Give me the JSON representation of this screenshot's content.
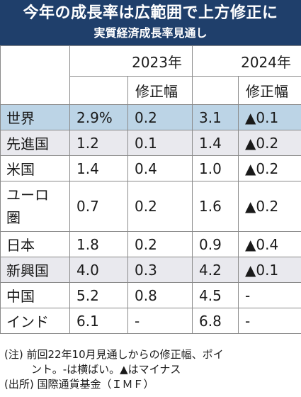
{
  "header": {
    "title": "今年の成長率は広範囲で上方修正に",
    "subtitle": "実質経済成長率見通し"
  },
  "table": {
    "year_2023": "2023年",
    "year_2024": "2024年",
    "revision_label_2023": "修正幅",
    "revision_label_2024": "修正幅",
    "rows": [
      {
        "name": "世界",
        "v2023": "2.9%",
        "r2023": "0.2",
        "v2024": "3.1",
        "r2024": "▲0.1"
      },
      {
        "name": "先進国",
        "v2023": "1.2",
        "r2023": "0.1",
        "v2024": "1.4",
        "r2024": "▲0.2"
      },
      {
        "name": "米国",
        "v2023": "1.4",
        "r2023": "0.4",
        "v2024": "1.0",
        "r2024": "▲0.2"
      },
      {
        "name_line1": "ユーロ",
        "name_line2": "圏",
        "v2023": "0.7",
        "r2023": "0.2",
        "v2024": "1.6",
        "r2024": "▲0.2"
      },
      {
        "name": "日本",
        "v2023": "1.8",
        "r2023": "0.2",
        "v2024": "0.9",
        "r2024": "▲0.4"
      },
      {
        "name": "新興国",
        "v2023": "4.0",
        "r2023": "0.3",
        "v2024": "4.2",
        "r2024": "▲0.1"
      },
      {
        "name": "中国",
        "v2023": "5.2",
        "r2023": "0.8",
        "v2024": "4.5",
        "r2024": "-"
      },
      {
        "name": "インド",
        "v2023": "6.1",
        "r2023": "-",
        "v2024": "6.8",
        "r2024": "-"
      }
    ]
  },
  "notes": {
    "line1": "(注) 前回22年10月見通しからの修正幅、ポイ",
    "line2": "ント。-は横ばい。▲はマイナス",
    "source": "(出所) 国際通貨基金（ＩＭＦ）"
  },
  "colors": {
    "header_bg": "#1f3f6b",
    "highlight_row": "#bcd4e6",
    "shaded_row": "#e9e9ee"
  }
}
